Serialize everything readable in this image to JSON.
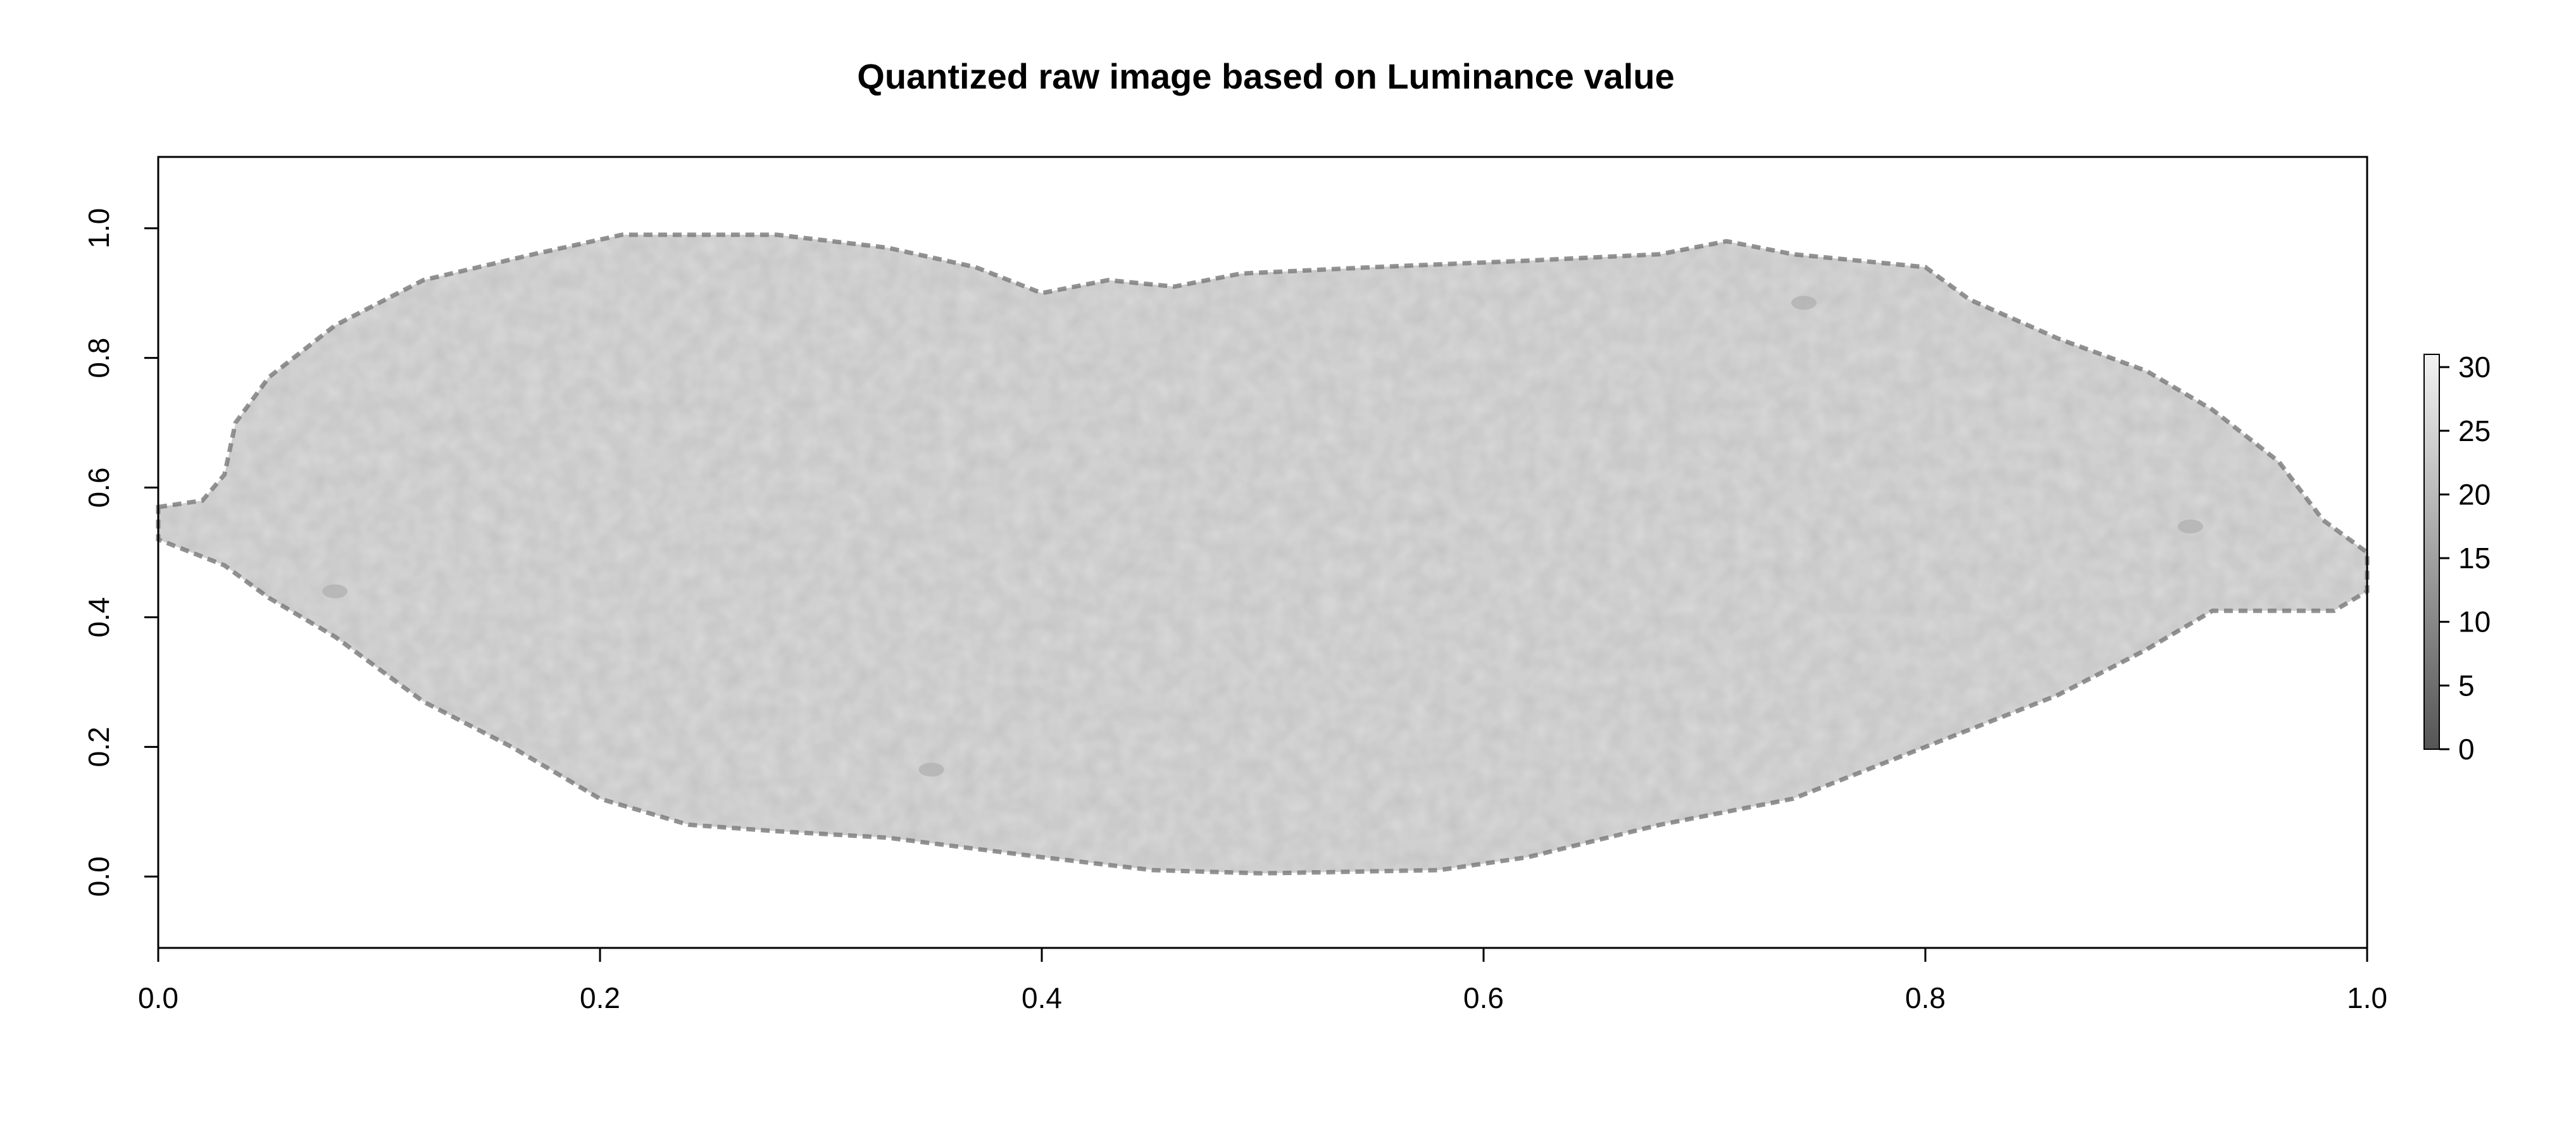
{
  "chart_data": {
    "type": "heatmap",
    "title": "Quantized raw image based on Luminance value",
    "xlabel": "",
    "ylabel": "",
    "xlim": [
      0.0,
      1.0
    ],
    "ylim": [
      -0.11,
      1.11
    ],
    "x_ticks": [
      "0.0",
      "0.2",
      "0.4",
      "0.6",
      "0.8",
      "1.0"
    ],
    "y_ticks": [
      "0.0",
      "0.2",
      "0.4",
      "0.6",
      "0.8",
      "1.0"
    ],
    "colorbar": {
      "range": [
        0,
        31
      ],
      "ticks": [
        "0",
        "5",
        "10",
        "15",
        "20",
        "25",
        "30"
      ],
      "low_color": "#555555",
      "high_color": "#f2f2f2"
    },
    "region": {
      "description_value_typical": 26,
      "edge_value": 12,
      "upper_boundary": [
        [
          0.0,
          0.57
        ],
        [
          0.02,
          0.58
        ],
        [
          0.03,
          0.62
        ],
        [
          0.035,
          0.7
        ],
        [
          0.05,
          0.77
        ],
        [
          0.08,
          0.85
        ],
        [
          0.12,
          0.92
        ],
        [
          0.17,
          0.96
        ],
        [
          0.21,
          0.99
        ],
        [
          0.28,
          0.99
        ],
        [
          0.33,
          0.97
        ],
        [
          0.37,
          0.94
        ],
        [
          0.4,
          0.9
        ],
        [
          0.43,
          0.92
        ],
        [
          0.46,
          0.91
        ],
        [
          0.49,
          0.93
        ],
        [
          0.55,
          0.94
        ],
        [
          0.62,
          0.95
        ],
        [
          0.68,
          0.96
        ],
        [
          0.71,
          0.98
        ],
        [
          0.74,
          0.96
        ],
        [
          0.8,
          0.94
        ],
        [
          0.82,
          0.89
        ],
        [
          0.86,
          0.83
        ],
        [
          0.9,
          0.78
        ],
        [
          0.93,
          0.72
        ],
        [
          0.96,
          0.64
        ],
        [
          0.98,
          0.55
        ],
        [
          1.0,
          0.5
        ]
      ],
      "lower_boundary": [
        [
          1.0,
          0.44
        ],
        [
          0.985,
          0.41
        ],
        [
          0.93,
          0.41
        ],
        [
          0.9,
          0.35
        ],
        [
          0.86,
          0.28
        ],
        [
          0.8,
          0.2
        ],
        [
          0.74,
          0.12
        ],
        [
          0.68,
          0.08
        ],
        [
          0.62,
          0.03
        ],
        [
          0.58,
          0.01
        ],
        [
          0.5,
          0.005
        ],
        [
          0.45,
          0.01
        ],
        [
          0.4,
          0.03
        ],
        [
          0.33,
          0.06
        ],
        [
          0.28,
          0.07
        ],
        [
          0.24,
          0.08
        ],
        [
          0.2,
          0.12
        ],
        [
          0.16,
          0.2
        ],
        [
          0.12,
          0.27
        ],
        [
          0.08,
          0.37
        ],
        [
          0.05,
          0.43
        ],
        [
          0.03,
          0.48
        ],
        [
          0.0,
          0.52
        ]
      ],
      "dark_spots": [
        [
          0.745,
          0.885
        ],
        [
          0.35,
          0.165
        ],
        [
          0.08,
          0.44
        ],
        [
          0.92,
          0.54
        ]
      ]
    }
  }
}
